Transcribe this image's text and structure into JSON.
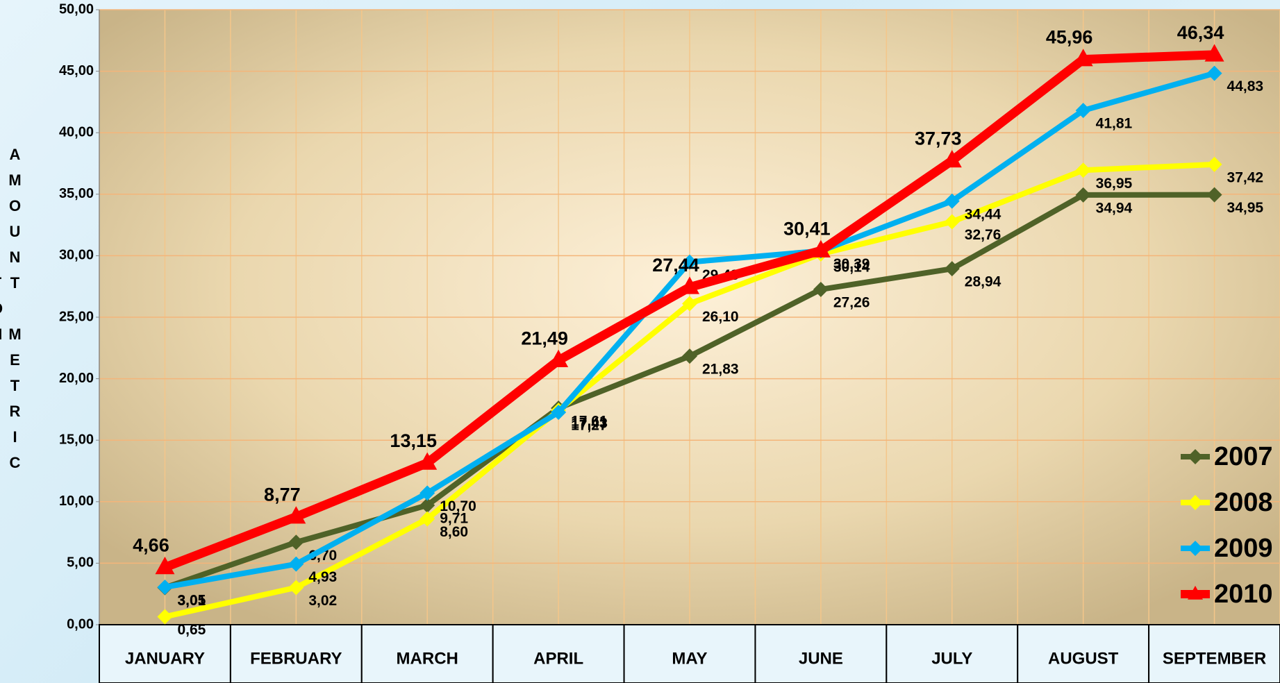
{
  "chart_data": {
    "type": "line",
    "y_label": "AMOUNT METRIC TON",
    "categories": [
      "JANUARY",
      "FEBRUARY",
      "MARCH",
      "APRIL",
      "MAY",
      "JUNE",
      "JULY",
      "AUGUST",
      "SEPTEMBER"
    ],
    "series": [
      {
        "name": "2007",
        "color": "#4f6228",
        "marker": "diamond",
        "values": [
          3.01,
          6.7,
          9.71,
          17.61,
          21.83,
          27.26,
          28.94,
          34.94,
          34.95
        ],
        "value_labels": [
          "3,01",
          "6,70",
          "9,71",
          "17,61",
          "21,83",
          "27,26",
          "28,94",
          "34,94",
          "34,95"
        ]
      },
      {
        "name": "2008",
        "color": "#ffff00",
        "marker": "diamond",
        "values": [
          0.65,
          3.02,
          8.6,
          17.43,
          26.1,
          30.14,
          32.76,
          36.95,
          37.42
        ],
        "value_labels": [
          "0,65",
          "3,02",
          "8,60",
          "17,43",
          "26,10",
          "30,14",
          "32,76",
          "36,95",
          "37,42"
        ]
      },
      {
        "name": "2009",
        "color": "#00b0f0",
        "marker": "diamond",
        "values": [
          3.05,
          4.93,
          10.7,
          17.27,
          29.48,
          30.39,
          34.44,
          41.81,
          44.83
        ],
        "value_labels": [
          "3,05",
          "4,93",
          "10,70",
          "17,27",
          "29,48",
          "30,39",
          "34,44",
          "41,81",
          "44,83"
        ]
      },
      {
        "name": "2010",
        "color": "#ff0000",
        "marker": "triangle",
        "values": [
          4.66,
          8.77,
          13.15,
          21.49,
          27.44,
          30.41,
          37.73,
          45.96,
          46.34
        ],
        "value_labels": [
          "4,66",
          "8,77",
          "13,15",
          "21,49",
          "27,44",
          "30,41",
          "37,73",
          "45,96",
          "46,34"
        ]
      }
    ],
    "ylim": [
      0,
      50
    ],
    "yticks": [
      {
        "value": 0,
        "label": "0,00"
      },
      {
        "value": 5,
        "label": "5,00"
      },
      {
        "value": 10,
        "label": "10,00"
      },
      {
        "value": 15,
        "label": "15,00"
      },
      {
        "value": 20,
        "label": "20,00"
      },
      {
        "value": 25,
        "label": "25,00"
      },
      {
        "value": 30,
        "label": "30,00"
      },
      {
        "value": 35,
        "label": "35,00"
      },
      {
        "value": 40,
        "label": "40,00"
      },
      {
        "value": 45,
        "label": "45,00"
      },
      {
        "value": 50,
        "label": "50,00"
      }
    ],
    "grid": true,
    "legend": "lower right"
  }
}
